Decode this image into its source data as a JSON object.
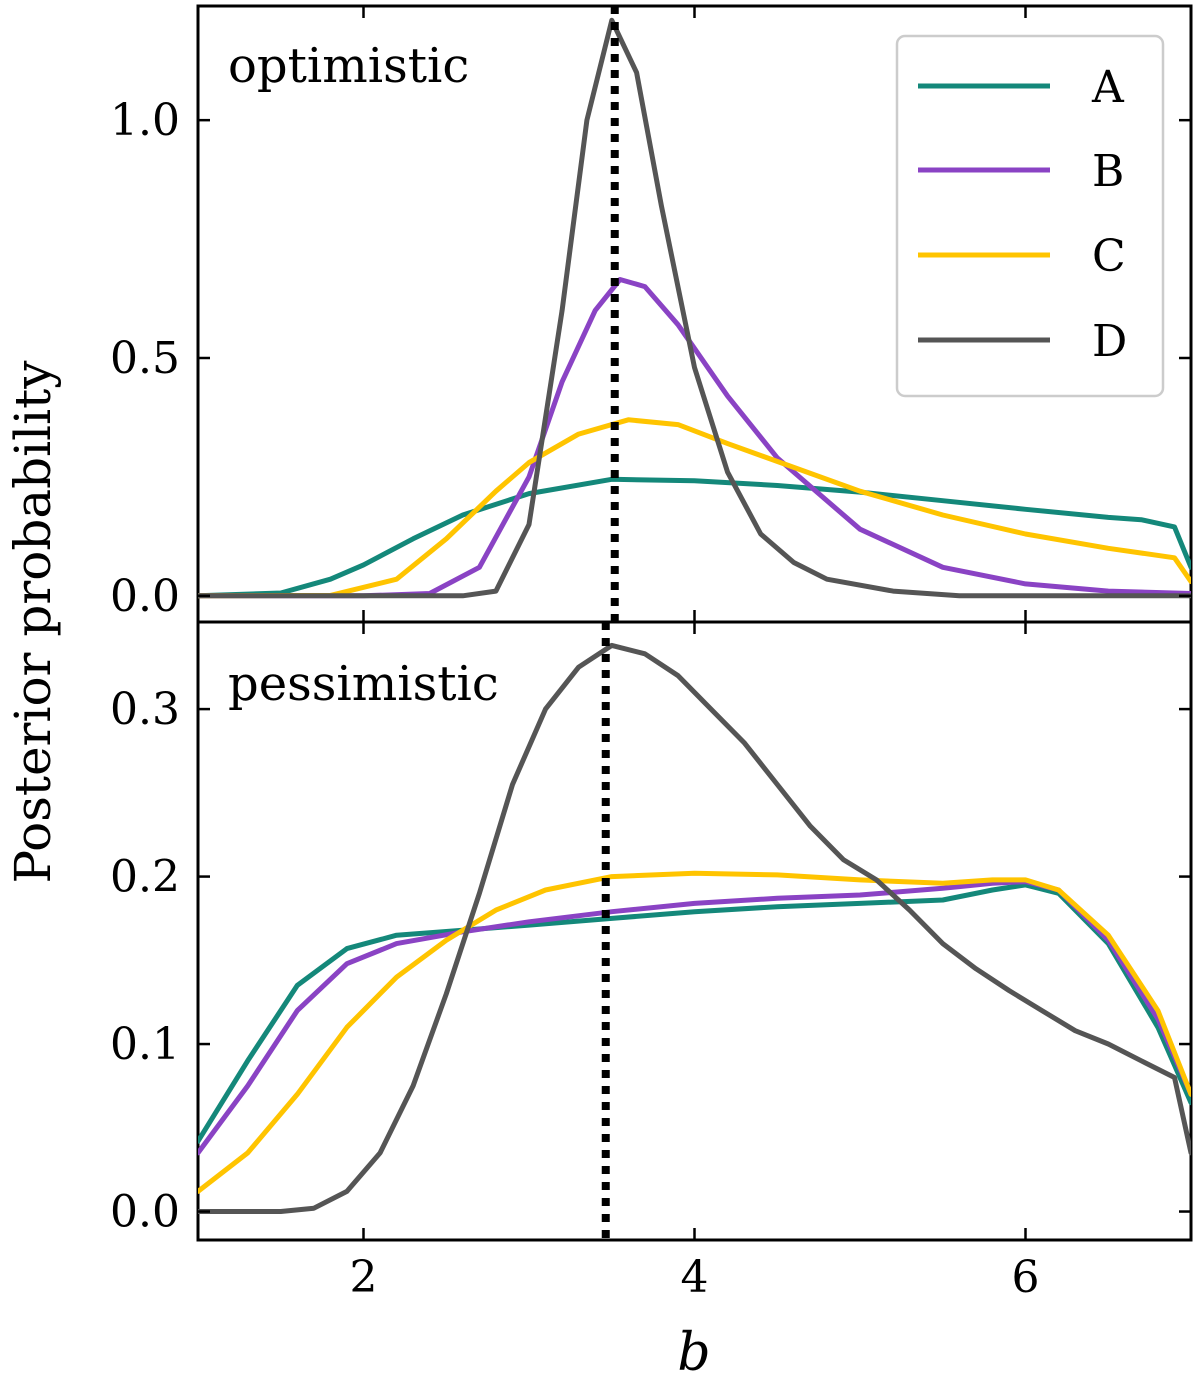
{
  "chart_data": {
    "type": "line",
    "ylabel": "Posterior probability",
    "xlabel": "b",
    "xlim": [
      1,
      7
    ],
    "x_ticks": [
      "2",
      "4",
      "6"
    ],
    "reference_line_x": 3.5,
    "legend": {
      "position": "top-right",
      "entries": [
        "A",
        "B",
        "C",
        "D"
      ]
    },
    "colors": {
      "A": "#14887a",
      "B": "#8a43c4",
      "C": "#ffc400",
      "D": "#555555",
      "ref": "#000000"
    },
    "panels": [
      {
        "label": "optimistic",
        "ylim": [
          -0.055,
          1.24
        ],
        "y_ticks": [
          "0.0",
          "0.5",
          "1.0"
        ],
        "y_tick_values": [
          0.0,
          0.5,
          1.0
        ],
        "series": [
          {
            "name": "A",
            "x": [
              1.0,
              1.5,
              1.8,
              2.0,
              2.3,
              2.6,
              3.0,
              3.5,
              4.0,
              4.5,
              5.0,
              5.5,
              6.0,
              6.5,
              6.7,
              6.9,
              7.0
            ],
            "y": [
              0.0,
              0.006,
              0.035,
              0.065,
              0.12,
              0.17,
              0.215,
              0.245,
              0.242,
              0.232,
              0.218,
              0.2,
              0.182,
              0.165,
              0.16,
              0.145,
              0.06
            ]
          },
          {
            "name": "B",
            "x": [
              1.0,
              2.0,
              2.4,
              2.7,
              3.0,
              3.2,
              3.4,
              3.55,
              3.7,
              3.9,
              4.2,
              4.5,
              5.0,
              5.5,
              6.0,
              6.5,
              7.0
            ],
            "y": [
              0.0,
              0.0,
              0.005,
              0.06,
              0.25,
              0.45,
              0.6,
              0.665,
              0.65,
              0.57,
              0.42,
              0.29,
              0.14,
              0.06,
              0.025,
              0.01,
              0.005
            ]
          },
          {
            "name": "C",
            "x": [
              1.0,
              1.8,
              2.2,
              2.5,
              2.8,
              3.0,
              3.3,
              3.6,
              3.9,
              4.2,
              4.6,
              5.0,
              5.5,
              6.0,
              6.5,
              6.9,
              7.0
            ],
            "y": [
              0.0,
              0.001,
              0.035,
              0.12,
              0.22,
              0.28,
              0.34,
              0.37,
              0.36,
              0.32,
              0.27,
              0.22,
              0.17,
              0.13,
              0.1,
              0.08,
              0.03
            ]
          },
          {
            "name": "D",
            "x": [
              1.0,
              2.6,
              2.8,
              3.0,
              3.2,
              3.35,
              3.5,
              3.65,
              3.8,
              4.0,
              4.2,
              4.4,
              4.6,
              4.8,
              5.2,
              5.6,
              6.5,
              7.0
            ],
            "y": [
              0.0,
              0.0,
              0.01,
              0.15,
              0.6,
              1.0,
              1.21,
              1.1,
              0.82,
              0.48,
              0.26,
              0.13,
              0.07,
              0.035,
              0.01,
              0.0,
              0.0,
              0.0
            ]
          }
        ]
      },
      {
        "label": "pessimistic",
        "ylim": [
          -0.017,
          0.352
        ],
        "y_ticks": [
          "0.0",
          "0.1",
          "0.2",
          "0.3"
        ],
        "y_tick_values": [
          0.0,
          0.1,
          0.2,
          0.3
        ],
        "series": [
          {
            "name": "A",
            "x": [
              1.0,
              1.3,
              1.6,
              1.9,
              2.2,
              2.6,
              3.0,
              3.5,
              4.0,
              4.5,
              5.0,
              5.5,
              5.8,
              6.0,
              6.2,
              6.5,
              6.8,
              7.0
            ],
            "y": [
              0.042,
              0.09,
              0.135,
              0.157,
              0.165,
              0.168,
              0.171,
              0.175,
              0.179,
              0.182,
              0.184,
              0.186,
              0.192,
              0.195,
              0.19,
              0.16,
              0.11,
              0.065
            ]
          },
          {
            "name": "B",
            "x": [
              1.0,
              1.3,
              1.6,
              1.9,
              2.2,
              2.6,
              3.0,
              3.5,
              4.0,
              4.5,
              5.0,
              5.5,
              5.8,
              6.0,
              6.2,
              6.5,
              6.8,
              7.0
            ],
            "y": [
              0.035,
              0.075,
              0.12,
              0.148,
              0.16,
              0.167,
              0.173,
              0.179,
              0.184,
              0.187,
              0.189,
              0.193,
              0.196,
              0.197,
              0.192,
              0.162,
              0.115,
              0.07
            ]
          },
          {
            "name": "C",
            "x": [
              1.0,
              1.3,
              1.6,
              1.9,
              2.2,
              2.5,
              2.8,
              3.1,
              3.5,
              4.0,
              4.5,
              5.0,
              5.5,
              5.8,
              6.0,
              6.2,
              6.5,
              6.8,
              7.0
            ],
            "y": [
              0.012,
              0.035,
              0.07,
              0.11,
              0.14,
              0.162,
              0.18,
              0.192,
              0.2,
              0.202,
              0.201,
              0.198,
              0.196,
              0.198,
              0.198,
              0.192,
              0.165,
              0.12,
              0.07
            ]
          },
          {
            "name": "D",
            "x": [
              1.0,
              1.5,
              1.7,
              1.9,
              2.1,
              2.3,
              2.5,
              2.7,
              2.9,
              3.1,
              3.3,
              3.5,
              3.7,
              3.9,
              4.1,
              4.3,
              4.5,
              4.7,
              4.9,
              5.1,
              5.3,
              5.5,
              5.7,
              5.9,
              6.1,
              6.3,
              6.5,
              6.7,
              6.9,
              7.0
            ],
            "y": [
              0.0,
              0.0,
              0.002,
              0.012,
              0.035,
              0.075,
              0.13,
              0.19,
              0.255,
              0.3,
              0.325,
              0.338,
              0.333,
              0.32,
              0.3,
              0.28,
              0.255,
              0.23,
              0.21,
              0.198,
              0.18,
              0.16,
              0.145,
              0.132,
              0.12,
              0.108,
              0.1,
              0.09,
              0.08,
              0.035
            ]
          }
        ]
      }
    ]
  }
}
